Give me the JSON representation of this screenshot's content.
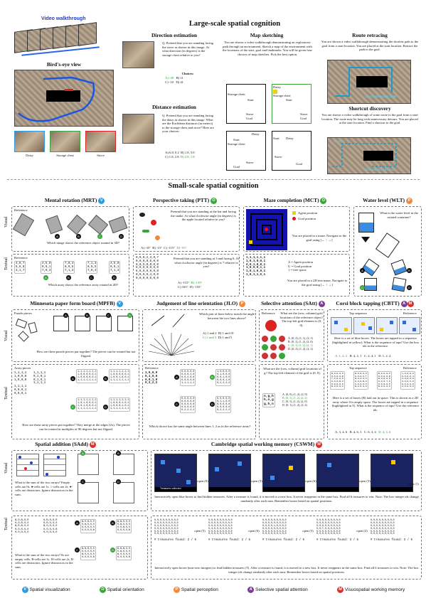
{
  "large": {
    "title": "Large-scale spatial cognition",
    "video_walkthrough": "Video walkthrough",
    "birds_eye": "Bird's-eye view",
    "landmarks": [
      "Daisy",
      "Storage chest",
      "Stove"
    ],
    "direction": {
      "title": "Direction estimation",
      "question": "Q: Pretend that you are standing facing the stove as shown in this image. At what direction (in degrees) is the storage chest relative to you?",
      "choices_label": "Choices:",
      "choices": [
        "A) -49",
        "B) 11",
        "C) -10",
        "D) 41"
      ]
    },
    "distance": {
      "title": "Distance estimation",
      "question": "Q: Pretend that you are standing facing the daisy as shown in this image. What are the Euclidean distances (in meters) to the storage chest and stove? Here are your choices:",
      "choices": [
        "A) 6.8, 0.2",
        "B) 1.8, 5.0",
        "C) 1.8, 2.8",
        "D) 2.8, 1.8"
      ]
    },
    "map": {
      "title": "Map sketching",
      "text": "You are shown a video walkthrough demonstrating an exploratory path through an environment. Sketch a map of the environment with the locations of the start, goal and landmarks. You will be given four choices of map sketches. Pick the best option.",
      "labels": [
        "Daisy",
        "Start",
        "Storage chest",
        "Stove",
        "Goal"
      ]
    },
    "route": {
      "title": "Route retracing",
      "text": "You are shown a video walkthrough demonstrating the shortest path to the goal from a start location. You are placed at the start location. Retrace the path to the goal.",
      "overlay": "video walkthrough route"
    },
    "shortcut": {
      "title": "Shortcut discovery",
      "text": "You are shown a video walkthrough of some route to the goal from a start location. The route may be long with unnecessary detours. You are placed at the start location. Find a shortcut to the goal.",
      "overlay1": "shortcut",
      "overlay2": "video walkthrough route"
    }
  },
  "small": {
    "title": "Small-scale spatial cognition",
    "row_labels": {
      "visual": "Visual",
      "textual": "Textual"
    },
    "mrt": {
      "title": "Mental rotation (MRT)",
      "badge": "V",
      "reference": "Reference",
      "visual_q": "Which image shows the reference object rotated in 3D?",
      "textual_q": "Which array shows the reference array rotated in 2D?",
      "ref_text": "4,0,7\n5,9,0\n3,1,7",
      "arrays": [
        "4,5,0\n0,9,1\n7,0,3",
        "7,0,4\n0,9,5\n7,1,3",
        "7,1,3\n0,9,5\n7,0,4",
        "4,5,0\n0,9,1\n7,1,3"
      ]
    },
    "ptt": {
      "title": "Perspective taking (PTT)",
      "badge": "O",
      "visual_q": "Pretend that you are standing at the bat and facing the snake. At what clockwise angle (in degrees) is the apple located relative to you?",
      "visual_choices": [
        "A) -35°",
        "B) -15°",
        "C) -115°",
        "D) -55°"
      ],
      "textual_q": "Pretend that you are standing at 3 and facing 6. At what clockwise angle (in degrees) is 7 relative to you?",
      "textual_choices": [
        "A) -115°",
        "B) -135°",
        "C) 165°",
        "D) -155°"
      ],
      "grid": "0,0,0,2,3,0,7\n0,0,0,0,0,0,0\n0,0,5,0,0,0,0\n0,0,0,0,0,0,0\n6,0,0,0,0,0,0\n0,0,0,0,4,0,0\n0,0,0,0,0,0,0"
    },
    "mct": {
      "title": "Maze completion (MCT)",
      "badge": "O",
      "legend_agent": "Agent position",
      "legend_goal": "Goal position",
      "visual_q": "You are placed in a maze. Navigate to the goal using [← ↑ →]",
      "grid": "1,1,1,1,1,1\n1,0,1,0,0,1\nA,0,1,0,0,1\n1,0,0,0,1,1\n1,0,1,0,0,1\n1,0,1,1,G,1",
      "legend_text": "A = Agent position\nG = Goal position\n1 = free space",
      "textual_q": "You are placed in a 2D text maze. Navigate to the goal using [← ↑ →]"
    },
    "wlt": {
      "title": "Water level (WLT)",
      "badge": "P",
      "question": "What is the water level in the rotated container?"
    },
    "mpfb": {
      "title": "Minnesota paper form board (MPFB)",
      "badge": "V",
      "puzzle_pieces": "Puzzle pieces",
      "visual_q": "How are these puzzle pieces put together? The pieces can be rotated but not flipped.",
      "array_pieces": "Array pieces",
      "textual_q": "How are these array pieces put together? They merge at the edges (2x). The pieces can be rotated in multiples of 90 degrees but not flipped."
    },
    "jlo": {
      "title": "Judgement of line orientation (JLO)",
      "badge": "P",
      "visual_q": "Which pair of lines below match the angle between the two lines above?",
      "choices": [
        "A) 1 and 2",
        "B) 1 and 10",
        "C) 1 and 3",
        "D) 1 and 5"
      ],
      "reference": "Reference",
      "textual_q": "Which choice has the same angle between lines 1, 2 as in the reference array?"
    },
    "satt": {
      "title": "Selective attention (SAtt)",
      "badge": "A",
      "reference": "Reference",
      "visual_q": "What are the (row, column) grid locations of the reference object? The top-left grid element is (0, 0).",
      "choices": [
        "A. (0, 2), (1, 1), (2, 1)",
        "B. (0, 1), (1, 2), (2, 0)",
        "C. (0, 1), (1, 2), (2, 1)",
        "D. (0, 2), (1, 2), (2, 2)"
      ],
      "textual_q": "What are the (row, column) grid locations of g? The top-left element of the grid is (0, 0).",
      "text_choices": [
        "A. (0, 0), (1, 2), (2, 0)",
        "B. (0, 1), (1, 2), (2, 2)",
        "C. (0, 1), (1, 2), (2, 0)",
        "D. (0, 1), (1, 2), (2, 2)"
      ],
      "grid": "n,g,h\nh,n,g\ng,h,n"
    },
    "cbtt": {
      "title": "Corsi block tapping (CBTT)",
      "badges": [
        "A",
        "M"
      ],
      "tap_sequence": "Tap sequence",
      "reference": "Reference",
      "visual_q": "Here is a set of blue boxes. The boxes are tapped in a sequence (highlighted in yellow). What is the sequence of taps? Use the box ids in the reference.",
      "choices": [
        "A. 1, 4, 2",
        "B. 4, 2, 1",
        "C. 2, 4, 1",
        "D. 1, 2, 4"
      ],
      "textual_q": "Here is a set of boxes (B) laid out in space. This is shown as a 2D array where 0 is empty space. The boxes are tapped in a sequence (highlighted in T). What is the sequence of taps? Use the reference ids.",
      "text_choices": [
        "A. 3, 4, 6",
        "B. 4, 6, 3",
        "C. 6, 3, 4",
        "D. 4, 3, 6"
      ]
    },
    "sadd": {
      "title": "Spatial addition (SAdd)",
      "badge": "M",
      "visual_q": "What is the sum of the two arrays? Empty cells are 0s. ●-cells are 1s. ○-cells are 2s. ●-cells are distractors. Ignore distractors in the sum.",
      "textual_q": "What is the sum of the two arrays? 0s are empty cells. B-cells are 1s. W-cells are 2s. R-cells are distractors. Ignore distractors in the sum."
    },
    "cswm": {
      "title": "Cambridge spatial working memory (CSWM)",
      "badge": "M",
      "bar_label": "Treasures collected",
      "open_labels": [
        "open (0)",
        "open (5)",
        "open (6)",
        "open (3)",
        "open (1)"
      ],
      "visual_note": "Interactively open blue boxes to find hidden treasures. After a treasure is found, it is moved to a new box. It never reappears in the same box. Find all 6 treasures to win. Note: The box integer ids change randomly after each turn. Remember boxes based on spatial positions.",
      "text_open_labels": [
        "open (5)",
        "open (6)",
        "open (3)",
        "open (2)"
      ],
      "found_labels": [
        "# treasures found: 2 / 6",
        "# treasures found: 2 / 6",
        "# treasures found: 2 / 6",
        "# treasures found: 3 / 6",
        "# treasures found: 3 / 6"
      ],
      "textual_note": "Interactively open boxes (non-zero integers) to find hidden treasures (T). After a treasure is found, it is moved to a new box. It never reappears in the same box. Find all 6 treasures to win. Note: The box integer ids change randomly after each turn. Remember boxes based on spatial positions."
    }
  },
  "legend": [
    {
      "badge": "V",
      "label": "Spatial visualization",
      "color": "#2f9be0"
    },
    {
      "badge": "O",
      "label": "Spatial orientation",
      "color": "#3aa53a"
    },
    {
      "badge": "P",
      "label": "Spatial perception",
      "color": "#f08a3e"
    },
    {
      "badge": "A",
      "label": "Selective spatial attention",
      "color": "#7b3c92"
    },
    {
      "badge": "M",
      "label": "Visuospatial working memory",
      "color": "#d9322e"
    }
  ]
}
